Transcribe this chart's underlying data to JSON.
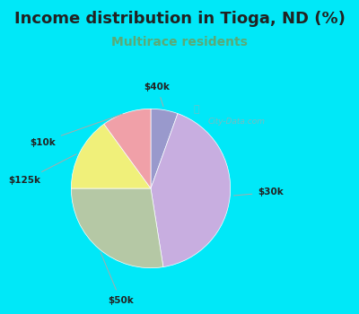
{
  "title": "Income distribution in Tioga, ND (%)",
  "subtitle": "Multirace residents",
  "labels": [
    "$40k",
    "$30k",
    "$50k",
    "$125k",
    "$10k"
  ],
  "sizes": [
    5.5,
    42.0,
    27.5,
    15.0,
    10.0
  ],
  "colors": [
    "#9999cc",
    "#c8aee0",
    "#b5c8a5",
    "#f0f07a",
    "#f0a0a8"
  ],
  "startangle": 90,
  "title_fontsize": 13,
  "subtitle_fontsize": 10,
  "subtitle_color": "#5aaa77",
  "background_color": "#00e8f8",
  "watermark": "City-Data.com"
}
